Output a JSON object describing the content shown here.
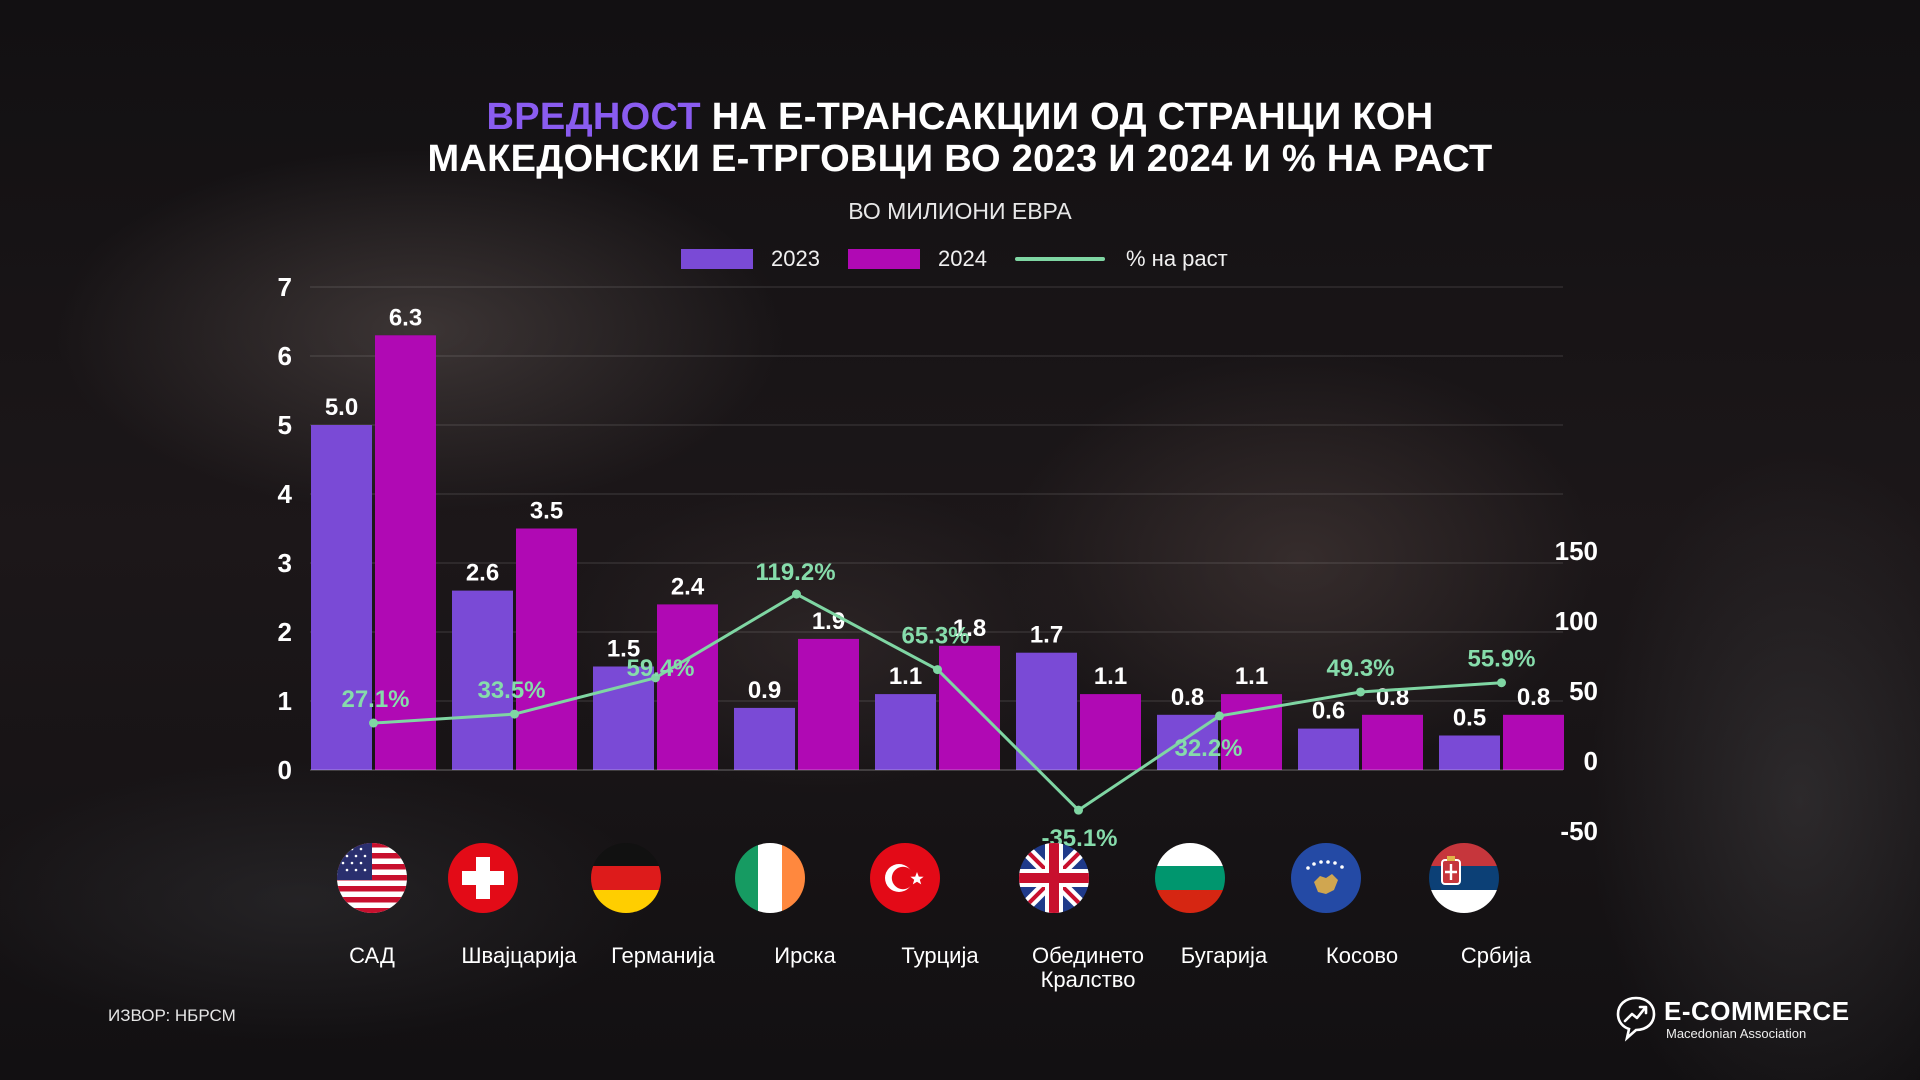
{
  "title": {
    "accent": "ВРЕДНОСТ",
    "line1_rest": " НА Е-ТРАНСАКЦИИ ОД СТРАНЦИ КОН",
    "line2": "МАКЕДОНСКИ Е-ТРГОВЦИ ВО 2023 И 2024 И % НА РАСТ"
  },
  "subtitle": "ВО МИЛИОНИ ЕВРА",
  "legend": {
    "s2023": "2023",
    "s2024": "2024",
    "growth": "% на раст"
  },
  "colors": {
    "s2023": "#7a4ad6",
    "s2024": "#b009b4",
    "growth": "#7fd6a3",
    "accent": "#8a5cf0"
  },
  "chart_data": {
    "type": "bar",
    "categories": [
      "САД",
      "Швајцарија",
      "Германија",
      "Ирска",
      "Турција",
      "Обединето\nКралство",
      "Бугарија",
      "Косово",
      "Србија"
    ],
    "series": [
      {
        "name": "2023",
        "values": [
          5.0,
          2.6,
          1.5,
          0.9,
          1.1,
          1.7,
          0.8,
          0.6,
          0.5
        ],
        "labels": [
          "5.0",
          "2.6",
          "1.5",
          "0.9",
          "1.1",
          "1.7",
          "0.8",
          "0.6",
          "0.5"
        ]
      },
      {
        "name": "2024",
        "values": [
          6.3,
          3.5,
          2.4,
          1.9,
          1.8,
          1.1,
          1.1,
          0.8,
          0.8
        ],
        "labels": [
          "6.3",
          "3.5",
          "2.4",
          "1.9",
          "1.8",
          "1.1",
          "1.1",
          "0.8",
          "0.8"
        ]
      },
      {
        "name": "% на раст",
        "type": "line",
        "axis": "right",
        "values": [
          27.1,
          33.5,
          59.4,
          119.2,
          65.3,
          -35.1,
          32.2,
          49.3,
          55.9
        ],
        "labels": [
          "27.1%",
          "33.5%",
          "59.4%",
          "119.2%",
          "65.3%",
          "-35.1%",
          "32.2%",
          "49.3%",
          "55.9%"
        ]
      }
    ],
    "left_axis": {
      "min": 0,
      "max": 7,
      "ticks": [
        "0",
        "1",
        "2",
        "3",
        "4",
        "5",
        "6",
        "7"
      ]
    },
    "right_axis": {
      "min": -50,
      "max": 150,
      "ticks": [
        "-50",
        "0",
        "50",
        "100",
        "150"
      ]
    },
    "grid": true
  },
  "countries": [
    {
      "name": "САД",
      "flag": "us-flag-icon"
    },
    {
      "name": "Швајцарија",
      "flag": "swiss-flag-icon"
    },
    {
      "name": "Германија",
      "flag": "german-flag-icon"
    },
    {
      "name": "Ирска",
      "flag": "irish-flag-icon"
    },
    {
      "name": "Турција",
      "flag": "turkish-flag-icon"
    },
    {
      "name": "Обединето Кралство",
      "line1": "Обединето",
      "line2": "Кралство",
      "flag": "uk-flag-icon"
    },
    {
      "name": "Бугарија",
      "flag": "bulgarian-flag-icon"
    },
    {
      "name": "Косово",
      "flag": "kosovo-flag-icon"
    },
    {
      "name": "Србија",
      "flag": "serbian-flag-icon"
    }
  ],
  "source": "ИЗВОР: НБРСМ",
  "brand": {
    "name": "E-COMMERCE",
    "sub": "Macedonian Association"
  }
}
